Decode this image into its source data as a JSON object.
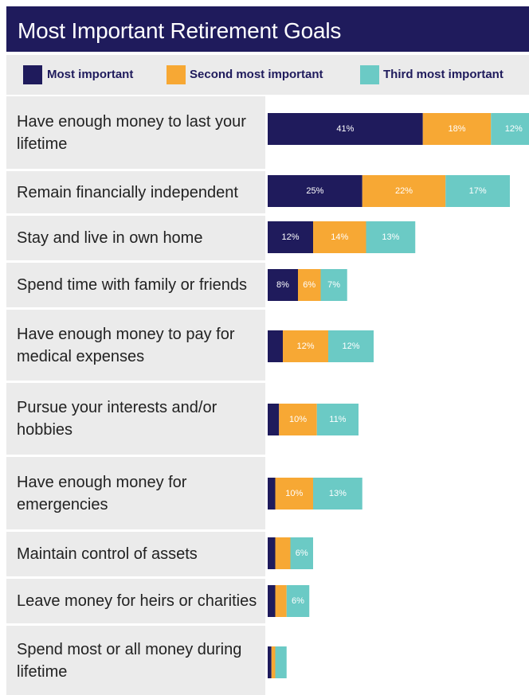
{
  "title": "Most Important Retirement Goals",
  "colors": {
    "most": "#1f1b5c",
    "second": "#f7a834",
    "third": "#6bcac5"
  },
  "chart_data": {
    "type": "bar",
    "orientation": "horizontal",
    "stacked": true,
    "title": "Most Important Retirement Goals",
    "legend": [
      "Most important",
      "Second most important",
      "Third most important"
    ],
    "legend_position": "top",
    "categories": [
      "Have enough money to last your lifetime",
      "Remain financially independent",
      "Stay and live in own home",
      "Spend time with family or friends",
      "Have enough money to pay for medical expenses",
      "Pursue your interests and/or hobbies",
      "Have enough money for emergencies",
      "Maintain control of assets",
      "Leave money for heirs or charities",
      "Spend most or all money during lifetime"
    ],
    "series": [
      {
        "name": "Most important",
        "values": [
          41,
          25,
          12,
          8,
          4,
          3,
          2,
          2,
          2,
          1
        ],
        "labels": [
          "41%",
          "25%",
          "12%",
          "8%",
          "",
          "",
          "",
          "",
          "",
          ""
        ]
      },
      {
        "name": "Second most important",
        "values": [
          18,
          22,
          14,
          6,
          12,
          10,
          10,
          4,
          3,
          1
        ],
        "labels": [
          "18%",
          "22%",
          "14%",
          "6%",
          "12%",
          "10%",
          "10%",
          "",
          "",
          ""
        ]
      },
      {
        "name": "Third most important",
        "values": [
          12,
          17,
          13,
          7,
          12,
          11,
          13,
          6,
          6,
          3
        ],
        "labels": [
          "12%",
          "17%",
          "13%",
          "7%",
          "12%",
          "11%",
          "13%",
          "6%",
          "6%",
          ""
        ]
      }
    ],
    "unit": "%"
  }
}
